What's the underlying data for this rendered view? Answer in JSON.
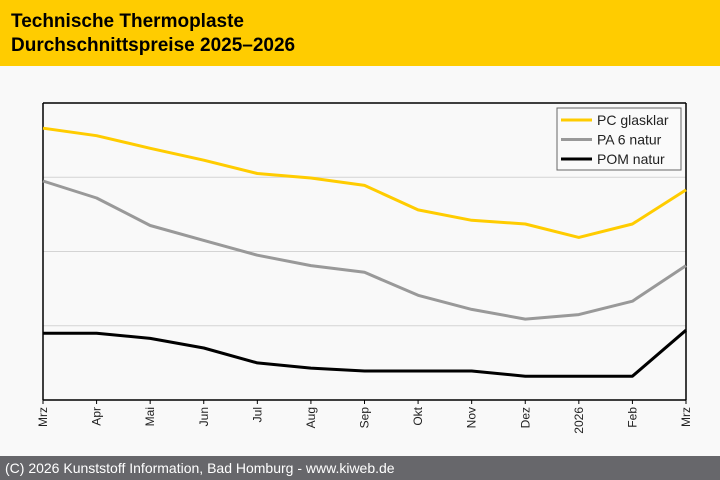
{
  "header": {
    "title_line1": "Technische Thermoplaste",
    "title_line2": "Durchschnittspreise 2025–2026",
    "background_color": "#ffcc00"
  },
  "footer": {
    "text": "(C) 2026 Kunststoff Information, Bad Homburg - www.kiweb.de",
    "background_color": "#67676b"
  },
  "chart_data": {
    "type": "line",
    "title": "Technische Thermoplaste Durchschnittspreise 2025–2026",
    "xlabel": "",
    "ylabel": "",
    "y_note": "no y-axis tick labels shown; values are relative in gridline units (gridlines at 1, 2, 3)",
    "ylim": [
      0,
      4
    ],
    "grid": true,
    "legend_position": "top-right",
    "categories": [
      "Mrz",
      "Apr",
      "Mai",
      "Jun",
      "Jul",
      "Aug",
      "Sep",
      "Okt",
      "Nov",
      "Dez",
      "2026",
      "Feb",
      "Mrz"
    ],
    "series": [
      {
        "name": "PC glasklar",
        "color": "#ffcc00",
        "values": [
          3.66,
          3.56,
          3.39,
          3.23,
          3.05,
          2.99,
          2.89,
          2.56,
          2.42,
          2.37,
          2.19,
          2.37,
          2.83
        ]
      },
      {
        "name": "PA 6 natur",
        "color": "#999999",
        "values": [
          2.95,
          2.72,
          2.35,
          2.15,
          1.95,
          1.81,
          1.72,
          1.41,
          1.22,
          1.09,
          1.15,
          1.33,
          1.81
        ]
      },
      {
        "name": "POM natur",
        "color": "#000000",
        "values": [
          0.9,
          0.9,
          0.83,
          0.7,
          0.5,
          0.43,
          0.39,
          0.39,
          0.39,
          0.32,
          0.32,
          0.32,
          0.94
        ]
      }
    ]
  }
}
